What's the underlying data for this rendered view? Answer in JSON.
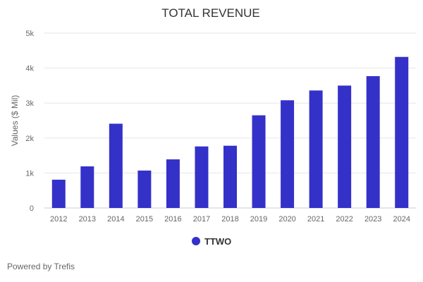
{
  "chart_data": {
    "type": "bar",
    "title": "TOTAL REVENUE",
    "xlabel": "",
    "ylabel": "Values ($ Mil)",
    "ylim": [
      0,
      5000
    ],
    "yticks": [
      0,
      1000,
      2000,
      3000,
      4000,
      5000
    ],
    "ytick_labels": [
      "0",
      "1k",
      "2k",
      "3k",
      "4k",
      "5k"
    ],
    "grid": true,
    "legend_position": "bottom",
    "categories": [
      "2012",
      "2013",
      "2014",
      "2015",
      "2016",
      "2017",
      "2018",
      "2019",
      "2020",
      "2021",
      "2022",
      "2023",
      "2024"
    ],
    "series": [
      {
        "name": "TTWO",
        "color": "#3431c9",
        "values": [
          809,
          1190,
          2410,
          1070,
          1390,
          1760,
          1780,
          2650,
          3080,
          3360,
          3500,
          3770,
          4320
        ]
      }
    ]
  },
  "footer": "Powered by Trefis"
}
